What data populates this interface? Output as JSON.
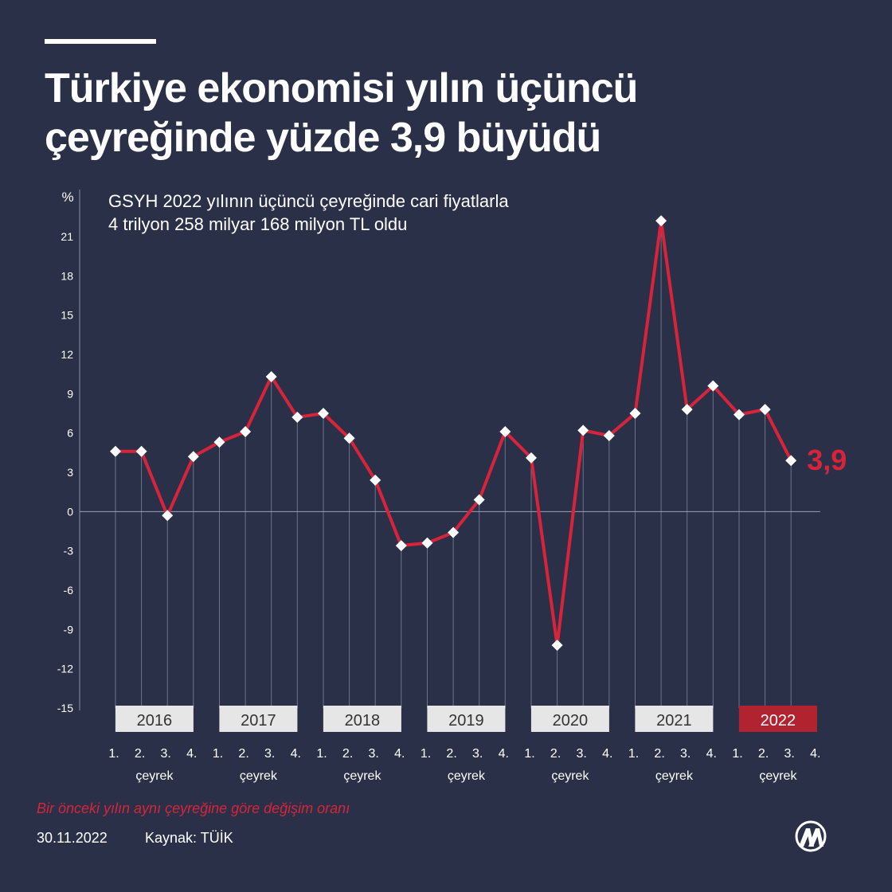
{
  "header": {
    "title_line1": "Türkiye ekonomisi yılın üçüncü",
    "title_line2": "çeyreğinde yüzde 3,9 büyüdü",
    "subtitle_line1": "GSYH 2022 yılının üçüncü çeyreğinde cari fiyatlarla",
    "subtitle_line2": "4 trilyon 258 milyar 168 milyon TL oldu"
  },
  "chart_data": {
    "type": "line",
    "ylabel": "%",
    "ylim": [
      -15,
      22
    ],
    "yticks": [
      21,
      18,
      15,
      12,
      9,
      6,
      3,
      0,
      -3,
      -6,
      -9,
      -12,
      -15
    ],
    "years": [
      {
        "label": "2016",
        "quarters": [
          4.6,
          4.6,
          -0.3,
          4.2
        ]
      },
      {
        "label": "2017",
        "quarters": [
          5.3,
          6.1,
          10.3,
          7.2
        ]
      },
      {
        "label": "2018",
        "quarters": [
          7.5,
          5.6,
          2.4,
          -2.6
        ]
      },
      {
        "label": "2019",
        "quarters": [
          -2.4,
          -1.6,
          0.9,
          6.1
        ]
      },
      {
        "label": "2020",
        "quarters": [
          4.1,
          -10.2,
          6.2,
          5.8
        ]
      },
      {
        "label": "2021",
        "quarters": [
          7.5,
          22.2,
          7.8,
          9.6
        ]
      },
      {
        "label": "2022",
        "quarters": [
          7.4,
          7.8,
          3.9
        ]
      }
    ],
    "quarter_labels": [
      "1.",
      "2.",
      "3.",
      "4."
    ],
    "quarter_caption": "çeyrek",
    "highlight_year": "2022",
    "last_value_label": "3,9",
    "grid": false,
    "colors": {
      "line": "#d8243a",
      "marker": "#ffffff",
      "year_box": "#e6e6e6",
      "year_box_highlight": "#b22330",
      "background": "#2a3048"
    }
  },
  "footer": {
    "note": "Bir önceki yılın aynı çeyreğine göre değişim oranı",
    "date": "30.11.2022",
    "source": "Kaynak: TÜİK"
  }
}
